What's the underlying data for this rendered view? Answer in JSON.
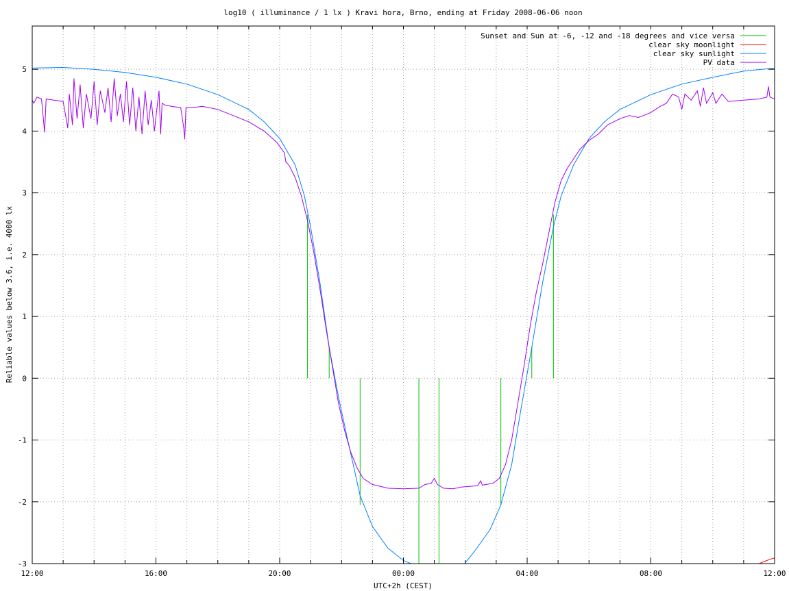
{
  "chart_data": {
    "type": "line",
    "title": "log10 ( illuminance / 1 lx ) Kravi hora, Brno, ending at Friday 2008-06-06 noon",
    "xlabel": "UTC+2h (CEST)",
    "ylabel": "Reliable values below 3.6, i.e. 4000 lx",
    "xlim": [
      12,
      36
    ],
    "ylim": [
      -3,
      5.7
    ],
    "grid": true,
    "legend_position": "top-right",
    "x_ticks": [
      {
        "value": 12,
        "label": "12:00"
      },
      {
        "value": 16,
        "label": "16:00"
      },
      {
        "value": 20,
        "label": "20:00"
      },
      {
        "value": 24,
        "label": "00:00"
      },
      {
        "value": 28,
        "label": "04:00"
      },
      {
        "value": 32,
        "label": "08:00"
      },
      {
        "value": 36,
        "label": "12:00"
      }
    ],
    "x_minor_grid_step": 1,
    "y_ticks": [
      {
        "value": -3,
        "label": "-3"
      },
      {
        "value": -2,
        "label": "-2"
      },
      {
        "value": -1,
        "label": "-1"
      },
      {
        "value": 0,
        "label": "0"
      },
      {
        "value": 1,
        "label": "1"
      },
      {
        "value": 2,
        "label": "2"
      },
      {
        "value": 3,
        "label": "3"
      },
      {
        "value": 4,
        "label": "4"
      },
      {
        "value": 5,
        "label": "5"
      }
    ],
    "series": [
      {
        "name": "Sunset and Sun at -6, -12 and -18 degrees and vice versa",
        "color": "#00c000",
        "style": "impulses",
        "points": [
          {
            "x": 20.9,
            "y": 2.65
          },
          {
            "x": 21.6,
            "y": 0.5
          },
          {
            "x": 22.6,
            "y": -2.05
          },
          {
            "x": 24.5,
            "y": -3.0
          },
          {
            "x": 25.15,
            "y": -3.0
          },
          {
            "x": 27.15,
            "y": -2.05
          },
          {
            "x": 28.15,
            "y": 0.5
          },
          {
            "x": 28.85,
            "y": 2.65
          }
        ]
      },
      {
        "name": "clear sky moonlight",
        "color": "#ff0000",
        "style": "line",
        "points": [
          {
            "x": 35.5,
            "y": -3.0
          },
          {
            "x": 35.7,
            "y": -2.96
          },
          {
            "x": 35.85,
            "y": -2.93
          },
          {
            "x": 36.0,
            "y": -2.91
          }
        ]
      },
      {
        "name": "clear sky sunlight",
        "color": "#0080ff",
        "style": "line",
        "points": [
          {
            "x": 12.0,
            "y": 5.02
          },
          {
            "x": 13.0,
            "y": 5.03
          },
          {
            "x": 14.0,
            "y": 5.0
          },
          {
            "x": 15.0,
            "y": 4.95
          },
          {
            "x": 16.0,
            "y": 4.87
          },
          {
            "x": 17.0,
            "y": 4.76
          },
          {
            "x": 18.0,
            "y": 4.59
          },
          {
            "x": 19.0,
            "y": 4.35
          },
          {
            "x": 19.5,
            "y": 4.15
          },
          {
            "x": 20.0,
            "y": 3.88
          },
          {
            "x": 20.5,
            "y": 3.45
          },
          {
            "x": 20.8,
            "y": 2.95
          },
          {
            "x": 21.0,
            "y": 2.45
          },
          {
            "x": 21.3,
            "y": 1.55
          },
          {
            "x": 21.6,
            "y": 0.5
          },
          {
            "x": 21.9,
            "y": -0.3
          },
          {
            "x": 22.2,
            "y": -1.0
          },
          {
            "x": 22.6,
            "y": -1.9
          },
          {
            "x": 23.0,
            "y": -2.4
          },
          {
            "x": 23.5,
            "y": -2.75
          },
          {
            "x": 24.0,
            "y": -2.95
          },
          {
            "x": 24.5,
            "y": -3.05
          },
          {
            "x": 25.9,
            "y": -3.05
          },
          {
            "x": 26.3,
            "y": -2.8
          },
          {
            "x": 26.8,
            "y": -2.45
          },
          {
            "x": 27.15,
            "y": -2.05
          },
          {
            "x": 27.5,
            "y": -1.4
          },
          {
            "x": 27.8,
            "y": -0.5
          },
          {
            "x": 28.15,
            "y": 0.5
          },
          {
            "x": 28.5,
            "y": 1.55
          },
          {
            "x": 28.85,
            "y": 2.45
          },
          {
            "x": 29.1,
            "y": 2.95
          },
          {
            "x": 29.5,
            "y": 3.45
          },
          {
            "x": 30.0,
            "y": 3.88
          },
          {
            "x": 30.5,
            "y": 4.15
          },
          {
            "x": 31.0,
            "y": 4.35
          },
          {
            "x": 32.0,
            "y": 4.59
          },
          {
            "x": 33.0,
            "y": 4.76
          },
          {
            "x": 34.0,
            "y": 4.87
          },
          {
            "x": 35.0,
            "y": 4.97
          },
          {
            "x": 36.0,
            "y": 5.02
          }
        ]
      },
      {
        "name": "PV data",
        "color": "#a000f0",
        "style": "line",
        "points": [
          {
            "x": 12.0,
            "y": 4.5
          },
          {
            "x": 12.05,
            "y": 4.45
          },
          {
            "x": 12.15,
            "y": 4.55
          },
          {
            "x": 12.3,
            "y": 4.52
          },
          {
            "x": 12.4,
            "y": 3.98
          },
          {
            "x": 12.45,
            "y": 4.52
          },
          {
            "x": 12.7,
            "y": 4.5
          },
          {
            "x": 13.0,
            "y": 4.48
          },
          {
            "x": 13.15,
            "y": 4.05
          },
          {
            "x": 13.2,
            "y": 4.6
          },
          {
            "x": 13.3,
            "y": 4.1
          },
          {
            "x": 13.35,
            "y": 4.85
          },
          {
            "x": 13.45,
            "y": 4.2
          },
          {
            "x": 13.55,
            "y": 4.75
          },
          {
            "x": 13.65,
            "y": 4.05
          },
          {
            "x": 13.75,
            "y": 4.6
          },
          {
            "x": 13.9,
            "y": 4.2
          },
          {
            "x": 14.0,
            "y": 4.8
          },
          {
            "x": 14.1,
            "y": 4.1
          },
          {
            "x": 14.2,
            "y": 4.65
          },
          {
            "x": 14.35,
            "y": 4.3
          },
          {
            "x": 14.45,
            "y": 4.7
          },
          {
            "x": 14.55,
            "y": 4.15
          },
          {
            "x": 14.65,
            "y": 4.85
          },
          {
            "x": 14.75,
            "y": 4.25
          },
          {
            "x": 14.85,
            "y": 4.6
          },
          {
            "x": 14.95,
            "y": 4.15
          },
          {
            "x": 15.05,
            "y": 4.8
          },
          {
            "x": 15.15,
            "y": 4.1
          },
          {
            "x": 15.25,
            "y": 4.7
          },
          {
            "x": 15.35,
            "y": 4.0
          },
          {
            "x": 15.45,
            "y": 4.55
          },
          {
            "x": 15.55,
            "y": 3.95
          },
          {
            "x": 15.65,
            "y": 4.65
          },
          {
            "x": 15.75,
            "y": 4.1
          },
          {
            "x": 15.85,
            "y": 4.5
          },
          {
            "x": 15.95,
            "y": 4.0
          },
          {
            "x": 16.05,
            "y": 4.45
          },
          {
            "x": 16.1,
            "y": 4.65
          },
          {
            "x": 16.15,
            "y": 3.95
          },
          {
            "x": 16.2,
            "y": 4.45
          },
          {
            "x": 16.3,
            "y": 4.42
          },
          {
            "x": 16.5,
            "y": 4.4
          },
          {
            "x": 16.8,
            "y": 4.38
          },
          {
            "x": 16.9,
            "y": 4.05
          },
          {
            "x": 16.93,
            "y": 3.87
          },
          {
            "x": 16.97,
            "y": 4.38
          },
          {
            "x": 17.2,
            "y": 4.38
          },
          {
            "x": 17.5,
            "y": 4.4
          },
          {
            "x": 18.0,
            "y": 4.35
          },
          {
            "x": 18.5,
            "y": 4.25
          },
          {
            "x": 19.0,
            "y": 4.15
          },
          {
            "x": 19.5,
            "y": 4.0
          },
          {
            "x": 19.9,
            "y": 3.82
          },
          {
            "x": 20.15,
            "y": 3.65
          },
          {
            "x": 20.2,
            "y": 3.5
          },
          {
            "x": 20.3,
            "y": 3.45
          },
          {
            "x": 20.5,
            "y": 3.25
          },
          {
            "x": 20.7,
            "y": 2.95
          },
          {
            "x": 20.9,
            "y": 2.55
          },
          {
            "x": 21.1,
            "y": 2.05
          },
          {
            "x": 21.3,
            "y": 1.45
          },
          {
            "x": 21.5,
            "y": 0.8
          },
          {
            "x": 21.7,
            "y": 0.2
          },
          {
            "x": 21.9,
            "y": -0.4
          },
          {
            "x": 22.1,
            "y": -0.85
          },
          {
            "x": 22.3,
            "y": -1.2
          },
          {
            "x": 22.5,
            "y": -1.45
          },
          {
            "x": 22.7,
            "y": -1.62
          },
          {
            "x": 23.0,
            "y": -1.72
          },
          {
            "x": 23.5,
            "y": -1.78
          },
          {
            "x": 24.0,
            "y": -1.79
          },
          {
            "x": 24.5,
            "y": -1.78
          },
          {
            "x": 24.7,
            "y": -1.72
          },
          {
            "x": 24.9,
            "y": -1.7
          },
          {
            "x": 25.0,
            "y": -1.62
          },
          {
            "x": 25.1,
            "y": -1.72
          },
          {
            "x": 25.3,
            "y": -1.78
          },
          {
            "x": 25.6,
            "y": -1.79
          },
          {
            "x": 25.9,
            "y": -1.76
          },
          {
            "x": 26.4,
            "y": -1.74
          },
          {
            "x": 26.5,
            "y": -1.66
          },
          {
            "x": 26.55,
            "y": -1.73
          },
          {
            "x": 26.9,
            "y": -1.7
          },
          {
            "x": 27.1,
            "y": -1.62
          },
          {
            "x": 27.3,
            "y": -1.4
          },
          {
            "x": 27.5,
            "y": -1.0
          },
          {
            "x": 27.7,
            "y": -0.4
          },
          {
            "x": 27.9,
            "y": 0.2
          },
          {
            "x": 28.1,
            "y": 0.85
          },
          {
            "x": 28.3,
            "y": 1.4
          },
          {
            "x": 28.5,
            "y": 1.85
          },
          {
            "x": 28.7,
            "y": 2.35
          },
          {
            "x": 28.9,
            "y": 2.85
          },
          {
            "x": 29.1,
            "y": 3.2
          },
          {
            "x": 29.3,
            "y": 3.4
          },
          {
            "x": 29.5,
            "y": 3.55
          },
          {
            "x": 29.7,
            "y": 3.7
          },
          {
            "x": 30.0,
            "y": 3.85
          },
          {
            "x": 30.3,
            "y": 3.95
          },
          {
            "x": 30.6,
            "y": 4.1
          },
          {
            "x": 31.0,
            "y": 4.2
          },
          {
            "x": 31.3,
            "y": 4.25
          },
          {
            "x": 31.6,
            "y": 4.22
          },
          {
            "x": 32.0,
            "y": 4.3
          },
          {
            "x": 32.3,
            "y": 4.4
          },
          {
            "x": 32.5,
            "y": 4.45
          },
          {
            "x": 32.7,
            "y": 4.6
          },
          {
            "x": 32.9,
            "y": 4.55
          },
          {
            "x": 33.0,
            "y": 4.35
          },
          {
            "x": 33.1,
            "y": 4.6
          },
          {
            "x": 33.3,
            "y": 4.5
          },
          {
            "x": 33.5,
            "y": 4.65
          },
          {
            "x": 33.6,
            "y": 4.4
          },
          {
            "x": 33.7,
            "y": 4.7
          },
          {
            "x": 33.8,
            "y": 4.45
          },
          {
            "x": 34.0,
            "y": 4.62
          },
          {
            "x": 34.1,
            "y": 4.45
          },
          {
            "x": 34.3,
            "y": 4.6
          },
          {
            "x": 34.5,
            "y": 4.48
          },
          {
            "x": 35.0,
            "y": 4.5
          },
          {
            "x": 35.5,
            "y": 4.52
          },
          {
            "x": 35.75,
            "y": 4.55
          },
          {
            "x": 35.8,
            "y": 4.72
          },
          {
            "x": 35.85,
            "y": 4.55
          },
          {
            "x": 36.0,
            "y": 4.52
          }
        ]
      }
    ]
  }
}
